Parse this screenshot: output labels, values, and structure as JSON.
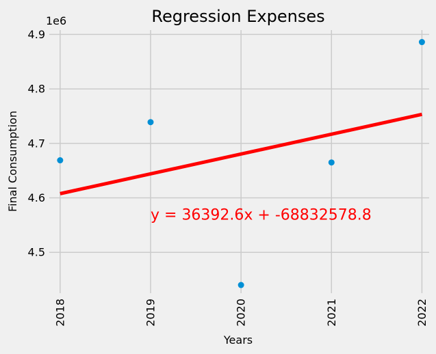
{
  "chart_data": {
    "type": "scatter",
    "title": "Regression Expenses",
    "xlabel": "Years",
    "ylabel": "Final Consumption",
    "y_offset_label": "1e6",
    "y_scale": 1000000,
    "x_ticks": [
      2018,
      2019,
      2020,
      2021,
      2022
    ],
    "y_ticks": [
      4.5,
      4.6,
      4.7,
      4.8,
      4.9
    ],
    "y_tick_labels": [
      "4.5",
      "4.6",
      "4.7",
      "4.8",
      "4.9"
    ],
    "xlim": [
      2017.88,
      2022.08
    ],
    "ylim": [
      4.425,
      4.908
    ],
    "grid": true,
    "series": [
      {
        "type": "scatter",
        "color": "#008fd5",
        "x": [
          2018,
          2019,
          2020,
          2021,
          2022
        ],
        "y": [
          4.669,
          4.739,
          4.44,
          4.665,
          4.886
        ]
      },
      {
        "type": "line",
        "color": "#ff0000",
        "slope": 36392.6,
        "intercept": -68832578.8,
        "x_range": [
          2018,
          2022
        ]
      }
    ],
    "annotation": {
      "text": "y = 36392.6x + -68832578.8",
      "x": 2019,
      "y": 4.57,
      "color": "#ff0000"
    }
  }
}
